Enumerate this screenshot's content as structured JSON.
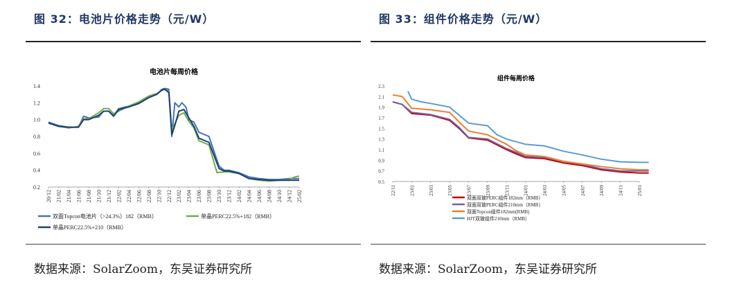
{
  "left": {
    "fig_title": "图 32：电池片价格走势（元/W）",
    "source": "数据来源：SolarZoom，东吴证券研究所"
  },
  "right": {
    "fig_title": "图 33：组件价格走势（元/W）",
    "source": "数据来源：SolarZoom，东吴证券研究所"
  },
  "chart_data": [
    {
      "type": "line",
      "title": "电池片每周价格",
      "ylim": [
        0.2,
        1.4
      ],
      "yticks": [
        "0.2",
        "0.4",
        "0.6",
        "0.8",
        "1.0",
        "1.2",
        "1.4"
      ],
      "x_labels": [
        "20/12",
        "21/02",
        "21/04",
        "21/06",
        "21/08",
        "21/10",
        "21/12",
        "22/02",
        "22/04",
        "22/06",
        "22/08",
        "22/10",
        "22/12",
        "23/02",
        "23/04",
        "23/06",
        "23/08",
        "23/10",
        "23/12",
        "24/02",
        "24/04",
        "24/06",
        "24/08",
        "24/10",
        "24/12",
        "25/02"
      ],
      "legend_position": "bottom",
      "series": [
        {
          "name": "双面Topcon电池片（>24.3%）182（RMB）",
          "color": "#4472c4",
          "points": [
            [
              0,
              0.97
            ],
            [
              1,
              0.93
            ],
            [
              2,
              0.91
            ],
            [
              3,
              0.91
            ],
            [
              3.5,
              1.04
            ],
            [
              4,
              1.02
            ],
            [
              5,
              1.03
            ],
            [
              5.5,
              1.1
            ],
            [
              6,
              1.1
            ],
            [
              6.5,
              1.05
            ],
            [
              7,
              1.13
            ],
            [
              8,
              1.16
            ],
            [
              9,
              1.2
            ],
            [
              10,
              1.27
            ],
            [
              10.8,
              1.3
            ],
            [
              11.3,
              1.36
            ],
            [
              11.6,
              1.37
            ],
            [
              12,
              1.36
            ],
            [
              12.3,
              0.8
            ],
            [
              12.6,
              1.2
            ],
            [
              13,
              1.15
            ],
            [
              13.3,
              1.2
            ],
            [
              13.7,
              1.15
            ],
            [
              14,
              1.0
            ],
            [
              14.5,
              0.97
            ],
            [
              15,
              0.85
            ],
            [
              16,
              0.8
            ],
            [
              17,
              0.45
            ],
            [
              17.5,
              0.4
            ],
            [
              18,
              0.4
            ],
            [
              19,
              0.37
            ],
            [
              20,
              0.32
            ],
            [
              21,
              0.3
            ],
            [
              22,
              0.29
            ],
            [
              23,
              0.29
            ],
            [
              24,
              0.3
            ],
            [
              24.6,
              0.3
            ],
            [
              25,
              0.3
            ]
          ]
        },
        {
          "name": "单晶PERC22.5%+182（RMB）",
          "color": "#70ad47",
          "points": [
            [
              0,
              0.96
            ],
            [
              1,
              0.92
            ],
            [
              2,
              0.9
            ],
            [
              3,
              0.92
            ],
            [
              3.5,
              1.01
            ],
            [
              4,
              1.01
            ],
            [
              5,
              1.08
            ],
            [
              5.5,
              1.13
            ],
            [
              6,
              1.13
            ],
            [
              6.5,
              1.07
            ],
            [
              7,
              1.1
            ],
            [
              8,
              1.16
            ],
            [
              9,
              1.21
            ],
            [
              10,
              1.28
            ],
            [
              10.8,
              1.31
            ],
            [
              11.3,
              1.35
            ],
            [
              11.6,
              1.36
            ],
            [
              12,
              1.34
            ],
            [
              12.3,
              0.88
            ],
            [
              12.6,
              0.95
            ],
            [
              13,
              1.05
            ],
            [
              13.5,
              1.08
            ],
            [
              14,
              0.98
            ],
            [
              14.5,
              0.9
            ],
            [
              15,
              0.75
            ],
            [
              16,
              0.7
            ],
            [
              16.8,
              0.37
            ],
            [
              17.5,
              0.38
            ],
            [
              18,
              0.38
            ],
            [
              19,
              0.36
            ],
            [
              20,
              0.3
            ],
            [
              21,
              0.28
            ],
            [
              22,
              0.27
            ],
            [
              23,
              0.28
            ],
            [
              24,
              0.29
            ],
            [
              24.6,
              0.32
            ],
            [
              25,
              0.33
            ]
          ]
        },
        {
          "name": "单晶PERC22.5%+210（RMB）",
          "color": "#1f3f6e",
          "points": [
            [
              0,
              0.96
            ],
            [
              1,
              0.92
            ],
            [
              2,
              0.91
            ],
            [
              3,
              0.91
            ],
            [
              3.5,
              1.0
            ],
            [
              4,
              1.0
            ],
            [
              5,
              1.05
            ],
            [
              5.5,
              1.1
            ],
            [
              6,
              1.1
            ],
            [
              6.5,
              1.04
            ],
            [
              7,
              1.12
            ],
            [
              8,
              1.15
            ],
            [
              9,
              1.19
            ],
            [
              10,
              1.26
            ],
            [
              10.8,
              1.3
            ],
            [
              11.3,
              1.35
            ],
            [
              11.6,
              1.36
            ],
            [
              12,
              1.32
            ],
            [
              12.3,
              0.82
            ],
            [
              12.6,
              0.93
            ],
            [
              13,
              1.1
            ],
            [
              13.5,
              1.12
            ],
            [
              14,
              1.02
            ],
            [
              14.5,
              0.92
            ],
            [
              15,
              0.78
            ],
            [
              16,
              0.73
            ],
            [
              17,
              0.42
            ],
            [
              17.5,
              0.39
            ],
            [
              18,
              0.39
            ],
            [
              19,
              0.36
            ],
            [
              20,
              0.3
            ],
            [
              21,
              0.29
            ],
            [
              22,
              0.28
            ],
            [
              23,
              0.28
            ],
            [
              24,
              0.28
            ],
            [
              24.6,
              0.28
            ],
            [
              25,
              0.28
            ]
          ]
        }
      ]
    },
    {
      "type": "line",
      "title": "组件每周价格",
      "ylim": [
        0.5,
        2.3
      ],
      "yticks": [
        "0.5",
        "0.7",
        "0.9",
        "1.1",
        "1.3",
        "1.5",
        "1.7",
        "1.9",
        "2.1",
        "2.3"
      ],
      "x_labels": [
        "22/11",
        "23/01",
        "23/03",
        "23/05",
        "23/07",
        "23/09",
        "23/11",
        "24/01",
        "24/03",
        "24/05",
        "24/07",
        "24/09",
        "24/11",
        "25/01"
      ],
      "legend_position": "bottom",
      "series": [
        {
          "name": "双面双玻PERC组件182mm（RMB）",
          "color": "#c00000",
          "points": [
            [
              0,
              2.0
            ],
            [
              0.5,
              1.95
            ],
            [
              1,
              1.78
            ],
            [
              2,
              1.75
            ],
            [
              3,
              1.65
            ],
            [
              3.5,
              1.5
            ],
            [
              4,
              1.32
            ],
            [
              5,
              1.28
            ],
            [
              6,
              1.1
            ],
            [
              6.5,
              1.02
            ],
            [
              7,
              0.95
            ],
            [
              8,
              0.93
            ],
            [
              9,
              0.85
            ],
            [
              10,
              0.8
            ],
            [
              11,
              0.72
            ],
            [
              12,
              0.68
            ],
            [
              13,
              0.66
            ],
            [
              13.5,
              0.66
            ]
          ]
        },
        {
          "name": "双面双玻PERC组件210mm（RMB）",
          "color": "#7060a8",
          "points": [
            [
              0,
              2.0
            ],
            [
              0.5,
              1.95
            ],
            [
              1,
              1.8
            ],
            [
              2,
              1.76
            ],
            [
              3,
              1.67
            ],
            [
              3.5,
              1.52
            ],
            [
              4,
              1.33
            ],
            [
              5,
              1.3
            ],
            [
              6,
              1.12
            ],
            [
              6.5,
              1.05
            ],
            [
              7,
              0.97
            ],
            [
              8,
              0.95
            ],
            [
              9,
              0.88
            ],
            [
              10,
              0.82
            ],
            [
              11,
              0.74
            ],
            [
              12,
              0.7
            ],
            [
              13,
              0.7
            ],
            [
              13.5,
              0.7
            ]
          ]
        },
        {
          "name": "双面Topcon组件182mm(RMB)",
          "color": "#ed7d31",
          "points": [
            [
              0,
              2.13
            ],
            [
              0.5,
              2.1
            ],
            [
              1,
              1.88
            ],
            [
              2,
              1.85
            ],
            [
              3,
              1.8
            ],
            [
              3.5,
              1.62
            ],
            [
              4,
              1.45
            ],
            [
              5,
              1.38
            ],
            [
              6,
              1.2
            ],
            [
              6.5,
              1.08
            ],
            [
              7,
              1.0
            ],
            [
              8,
              0.97
            ],
            [
              9,
              0.88
            ],
            [
              10,
              0.83
            ],
            [
              11,
              0.78
            ],
            [
              12,
              0.74
            ],
            [
              13,
              0.72
            ],
            [
              13.5,
              0.72
            ]
          ]
        },
        {
          "name": "HJT双玻组件210mm（RMB）",
          "color": "#5b9bd5",
          "points": [
            [
              0.8,
              2.2
            ],
            [
              1,
              2.05
            ],
            [
              1.5,
              2.0
            ],
            [
              2,
              1.97
            ],
            [
              3,
              1.9
            ],
            [
              3.5,
              1.75
            ],
            [
              4,
              1.6
            ],
            [
              5,
              1.55
            ],
            [
              5.5,
              1.38
            ],
            [
              6,
              1.3
            ],
            [
              7,
              1.2
            ],
            [
              8,
              1.17
            ],
            [
              9,
              1.07
            ],
            [
              10,
              1.0
            ],
            [
              11,
              0.92
            ],
            [
              12,
              0.87
            ],
            [
              13,
              0.86
            ],
            [
              13.5,
              0.86
            ]
          ]
        }
      ]
    }
  ]
}
